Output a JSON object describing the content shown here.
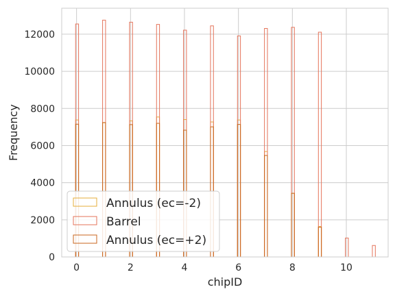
{
  "chart_data": {
    "type": "histogram",
    "xlabel": "chipID",
    "ylabel": "Frequency",
    "xlim": [
      -0.55,
      11.55
    ],
    "ylim": [
      0,
      13400
    ],
    "xticks": [
      0,
      2,
      4,
      6,
      8,
      10
    ],
    "yticks": [
      0,
      2000,
      4000,
      6000,
      8000,
      10000,
      12000
    ],
    "grid": true,
    "legend": {
      "placement": "lower-left",
      "entries": [
        "Annulus (ec=-2)",
        "Barrel",
        "Annulus (ec=+2)"
      ]
    },
    "series": [
      {
        "name": "Annulus (ec=-2)",
        "color": "#e5ae38",
        "x": [
          0,
          1,
          2,
          3,
          4,
          5,
          6,
          7,
          8,
          9
        ],
        "values": [
          7380,
          7230,
          7330,
          7540,
          7400,
          7270,
          7380,
          5680,
          3430,
          1640
        ]
      },
      {
        "name": "Barrel",
        "color": "#e4735a",
        "x": [
          0,
          1,
          2,
          3,
          4,
          5,
          6,
          7,
          8,
          9,
          10,
          11
        ],
        "values": [
          12550,
          12760,
          12650,
          12530,
          12220,
          12450,
          11910,
          12310,
          12370,
          12110,
          1020,
          620
        ]
      },
      {
        "name": "Annulus (ec=+2)",
        "color": "#c8651c",
        "x": [
          0,
          1,
          2,
          3,
          4,
          5,
          6,
          7,
          8,
          9
        ],
        "values": [
          7150,
          7240,
          7130,
          7200,
          6830,
          7010,
          7140,
          5470,
          3430,
          1600
        ]
      }
    ]
  }
}
